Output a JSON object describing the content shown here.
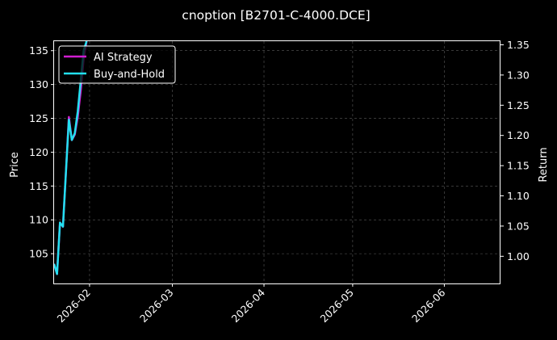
{
  "chart_data": {
    "type": "line",
    "title": "cnoption [B2701-C-4000.DCE]",
    "xlabel": "",
    "ylabel": "Price",
    "ylabel_right": "Return",
    "x_ticks": [
      "2026-02",
      "2026-03",
      "2026-04",
      "2026-05",
      "2026-06"
    ],
    "xlim": [
      "2026-01-20",
      "2026-06-20"
    ],
    "ylim": [
      100.6,
      136.4
    ],
    "ylim_right": [
      0.955,
      1.356
    ],
    "y_ticks": [
      105,
      110,
      115,
      120,
      125,
      130,
      135
    ],
    "y_ticks_right": [
      1.0,
      1.05,
      1.1,
      1.15,
      1.2,
      1.25,
      1.3,
      1.35
    ],
    "y_tick_labels_right": [
      "1.00",
      "1.05",
      "1.10",
      "1.15",
      "1.20",
      "1.25",
      "1.30",
      "1.35"
    ],
    "grid": true,
    "legend_position": "top-left",
    "series": [
      {
        "name": "AI Strategy",
        "color": "#d11ed1",
        "x": [
          "2026-01-20",
          "2026-01-21",
          "2026-01-22",
          "2026-01-23",
          "2026-01-24",
          "2026-01-25",
          "2026-01-26",
          "2026-01-27",
          "2026-01-28",
          "2026-01-29",
          "2026-01-30",
          "2026-01-31"
        ],
        "y": [
          103.5,
          102.0,
          109.6,
          109.0,
          117.0,
          125.2,
          121.8,
          122.6,
          125.2,
          129.0,
          133.8,
          136.4
        ]
      },
      {
        "name": "Buy-and-Hold",
        "color": "#22e0f0",
        "x": [
          "2026-01-20",
          "2026-01-21",
          "2026-01-22",
          "2026-01-23",
          "2026-01-24",
          "2026-01-25",
          "2026-01-26",
          "2026-01-27",
          "2026-01-28",
          "2026-01-29",
          "2026-01-30",
          "2026-01-31"
        ],
        "y": [
          103.5,
          102.0,
          109.6,
          109.0,
          117.0,
          124.8,
          121.8,
          122.8,
          126.0,
          130.5,
          135.0,
          136.4
        ]
      }
    ]
  }
}
